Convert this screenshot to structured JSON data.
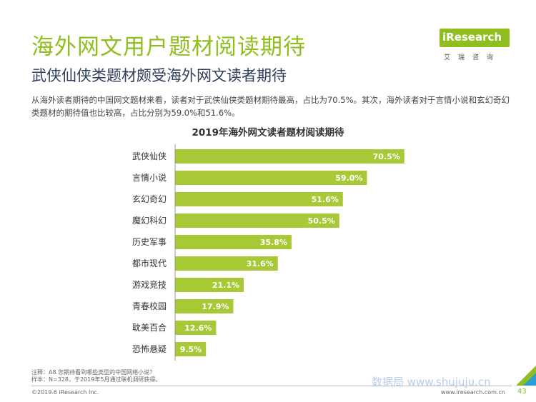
{
  "header": {
    "title": "海外网文用户题材阅读期待",
    "subtitle": "武侠仙侠类题材颇受海外网文读者期待",
    "description": "从海外读者期待的中国网文题材来看，读者对于武侠仙侠类题材期待最高，占比为70.5%。其次，海外读者对于言情小说和玄幻奇幻类题材的期待值也比较高，占比分别为59.0%和51.6%。"
  },
  "logo": {
    "brand": "iResearch",
    "sub": "艾瑞咨询"
  },
  "chart_data": {
    "type": "bar",
    "orientation": "horizontal",
    "title": "2019年海外网文读者题材阅读期待",
    "categories": [
      "武侠仙侠",
      "言情小说",
      "玄幻奇幻",
      "魔幻科幻",
      "历史军事",
      "都市现代",
      "游戏竞技",
      "青春校园",
      "耽美百合",
      "恐怖悬疑"
    ],
    "values": [
      70.5,
      59.0,
      51.6,
      50.5,
      35.8,
      31.6,
      21.1,
      17.9,
      12.6,
      9.5
    ],
    "value_labels": [
      "70.5%",
      "59.0%",
      "51.6%",
      "50.5%",
      "35.8%",
      "31.6%",
      "21.1%",
      "17.9%",
      "12.6%",
      "9.5%"
    ],
    "xlim": [
      0,
      100
    ],
    "grid": false,
    "bar_color": "#a6c935"
  },
  "footer": {
    "note1": "注释：A8.您期待看到哪些类型的中国网络小说？",
    "note2": "样本：N=328，于2019年5月通过联机调研获得。",
    "copyright": "©2019.6 iResearch Inc.",
    "website": "www.iresearch.com.cn",
    "page": "43"
  },
  "watermark": "数据局  www.shujuju.cn"
}
